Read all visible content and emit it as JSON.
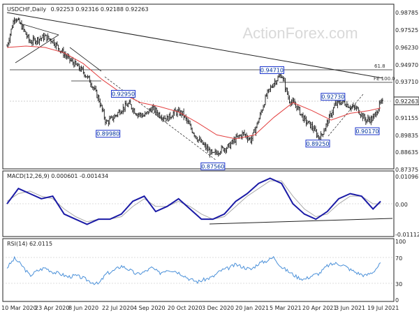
{
  "chart_data": [
    {
      "type": "candlestick",
      "title": "USDCHF,Daily",
      "ohlc_header": "0.92253 0.92316 0.92188 0.92263",
      "watermark": "ActionForex.com",
      "ylim": [
        0.8737,
        0.992
      ],
      "y_ticks": [
        "0.98785",
        "0.97525",
        "0.96230",
        "0.94970",
        "0.93710",
        "0.92263",
        "0.91155",
        "0.89835",
        "0.88635",
        "0.87375"
      ],
      "x_ticks": [
        "10 Mar 2020",
        "23 Apr 2020",
        "8 Jun 2020",
        "22 Jul 2020",
        "4 Sep 2020",
        "20 Oct 2020",
        "3 Dec 2020",
        "20 Jan 2021",
        "5 Mar 2021",
        "20 Apr 2021",
        "3 Jun 2021",
        "19 Jul 2021"
      ],
      "current_price": "0.92263",
      "labels": [
        {
          "text": "0.94710",
          "t": 0.695,
          "v": 0.9471
        },
        {
          "text": "0.92950",
          "t": 0.305,
          "v": 0.9295
        },
        {
          "text": "0.92730",
          "t": 0.855,
          "v": 0.9273
        },
        {
          "text": "0.89980",
          "t": 0.265,
          "v": 0.8998
        },
        {
          "text": "0.90170",
          "t": 0.945,
          "v": 0.9017
        },
        {
          "text": "0.89250",
          "t": 0.815,
          "v": 0.8925
        },
        {
          "text": "0.87560",
          "t": 0.54,
          "v": 0.8756
        }
      ],
      "levels": [
        {
          "text": "61.8",
          "v": 0.95
        },
        {
          "text": "FE 100.0",
          "v": 0.9375
        }
      ],
      "series": [
        {
          "type": "candlestick",
          "points": [
            [
              0.0,
              0.965
            ],
            [
              0.02,
              0.987
            ],
            [
              0.04,
              0.979
            ],
            [
              0.06,
              0.968
            ],
            [
              0.08,
              0.97
            ],
            [
              0.1,
              0.972
            ],
            [
              0.12,
              0.969
            ],
            [
              0.14,
              0.962
            ],
            [
              0.16,
              0.956
            ],
            [
              0.18,
              0.951
            ],
            [
              0.2,
              0.946
            ],
            [
              0.22,
              0.938
            ],
            [
              0.24,
              0.926
            ],
            [
              0.26,
              0.908
            ],
            [
              0.28,
              0.912
            ],
            [
              0.3,
              0.918
            ],
            [
              0.32,
              0.922
            ],
            [
              0.34,
              0.915
            ],
            [
              0.36,
              0.913
            ],
            [
              0.38,
              0.919
            ],
            [
              0.4,
              0.914
            ],
            [
              0.42,
              0.911
            ],
            [
              0.44,
              0.916
            ],
            [
              0.46,
              0.915
            ],
            [
              0.48,
              0.905
            ],
            [
              0.5,
              0.896
            ],
            [
              0.52,
              0.89
            ],
            [
              0.54,
              0.884
            ],
            [
              0.56,
              0.888
            ],
            [
              0.58,
              0.89
            ],
            [
              0.6,
              0.896
            ],
            [
              0.62,
              0.9
            ],
            [
              0.64,
              0.895
            ],
            [
              0.66,
              0.91
            ],
            [
              0.68,
              0.928
            ],
            [
              0.7,
              0.938
            ],
            [
              0.72,
              0.944
            ],
            [
              0.74,
              0.925
            ],
            [
              0.76,
              0.92
            ],
            [
              0.78,
              0.91
            ],
            [
              0.8,
              0.905
            ],
            [
              0.82,
              0.896
            ],
            [
              0.84,
              0.908
            ],
            [
              0.86,
              0.921
            ],
            [
              0.88,
              0.924
            ],
            [
              0.9,
              0.92
            ],
            [
              0.92,
              0.918
            ],
            [
              0.94,
              0.91
            ],
            [
              0.96,
              0.911
            ],
            [
              0.98,
              0.9226
            ]
          ]
        },
        {
          "type": "line",
          "color": "#e34040",
          "points": [
            [
              0.0,
              0.964
            ],
            [
              0.05,
              0.965
            ],
            [
              0.1,
              0.964
            ],
            [
              0.15,
              0.96
            ],
            [
              0.2,
              0.952
            ],
            [
              0.25,
              0.94
            ],
            [
              0.3,
              0.93
            ],
            [
              0.35,
              0.923
            ],
            [
              0.4,
              0.92
            ],
            [
              0.45,
              0.916
            ],
            [
              0.5,
              0.908
            ],
            [
              0.55,
              0.899
            ],
            [
              0.6,
              0.896
            ],
            [
              0.65,
              0.899
            ],
            [
              0.7,
              0.912
            ],
            [
              0.75,
              0.923
            ],
            [
              0.8,
              0.917
            ],
            [
              0.85,
              0.91
            ],
            [
              0.9,
              0.915
            ],
            [
              0.95,
              0.917
            ],
            [
              0.98,
              0.919
            ]
          ]
        }
      ]
    },
    {
      "type": "line",
      "title": "MACD(12,26,9) 0.000601 -0.001434",
      "ylim": [
        -0.0125,
        0.0115
      ],
      "y_ticks": [
        "0.010967",
        "0.00",
        "-0.011127"
      ],
      "series": [
        {
          "name": "MACD",
          "color": "#1a1aa6",
          "points": [
            [
              0.0,
              0.0
            ],
            [
              0.03,
              0.006
            ],
            [
              0.06,
              0.004
            ],
            [
              0.09,
              0.002
            ],
            [
              0.12,
              0.003
            ],
            [
              0.15,
              -0.004
            ],
            [
              0.18,
              -0.006
            ],
            [
              0.21,
              -0.008
            ],
            [
              0.24,
              -0.006
            ],
            [
              0.27,
              -0.006
            ],
            [
              0.3,
              -0.004
            ],
            [
              0.33,
              0.001
            ],
            [
              0.36,
              0.003
            ],
            [
              0.39,
              -0.003
            ],
            [
              0.42,
              -0.001
            ],
            [
              0.45,
              0.002
            ],
            [
              0.48,
              -0.002
            ],
            [
              0.51,
              -0.006
            ],
            [
              0.54,
              -0.006
            ],
            [
              0.57,
              -0.004
            ],
            [
              0.6,
              0.001
            ],
            [
              0.63,
              0.004
            ],
            [
              0.66,
              0.008
            ],
            [
              0.69,
              0.01
            ],
            [
              0.72,
              0.008
            ],
            [
              0.75,
              0.0
            ],
            [
              0.78,
              -0.004
            ],
            [
              0.81,
              -0.006
            ],
            [
              0.84,
              -0.003
            ],
            [
              0.87,
              0.002
            ],
            [
              0.9,
              0.004
            ],
            [
              0.93,
              0.003
            ],
            [
              0.96,
              -0.002
            ],
            [
              0.98,
              0.001
            ]
          ]
        },
        {
          "name": "Signal",
          "color": "#aaaaaa",
          "points": [
            [
              0.0,
              0.001
            ],
            [
              0.03,
              0.004
            ],
            [
              0.06,
              0.005
            ],
            [
              0.09,
              0.003
            ],
            [
              0.12,
              0.002
            ],
            [
              0.15,
              -0.002
            ],
            [
              0.18,
              -0.005
            ],
            [
              0.21,
              -0.007
            ],
            [
              0.24,
              -0.006
            ],
            [
              0.27,
              -0.006
            ],
            [
              0.3,
              -0.005
            ],
            [
              0.33,
              -0.001
            ],
            [
              0.36,
              0.002
            ],
            [
              0.39,
              -0.001
            ],
            [
              0.42,
              -0.001
            ],
            [
              0.45,
              0.001
            ],
            [
              0.48,
              -0.001
            ],
            [
              0.51,
              -0.004
            ],
            [
              0.54,
              -0.006
            ],
            [
              0.57,
              -0.005
            ],
            [
              0.6,
              -0.001
            ],
            [
              0.63,
              0.003
            ],
            [
              0.66,
              0.006
            ],
            [
              0.69,
              0.009
            ],
            [
              0.72,
              0.009
            ],
            [
              0.75,
              0.003
            ],
            [
              0.78,
              -0.002
            ],
            [
              0.81,
              -0.005
            ],
            [
              0.84,
              -0.004
            ],
            [
              0.87,
              0.0
            ],
            [
              0.9,
              0.003
            ],
            [
              0.93,
              0.003
            ],
            [
              0.96,
              0.0
            ],
            [
              0.98,
              0.0
            ]
          ]
        }
      ]
    },
    {
      "type": "line",
      "title": "RSI(14) 62.0115",
      "ylim": [
        0,
        100
      ],
      "y_ticks": [
        "100",
        "70",
        "30",
        "0"
      ],
      "series": [
        {
          "name": "RSI",
          "color": "#4a90d9",
          "points": [
            [
              0.0,
              55
            ],
            [
              0.02,
              70
            ],
            [
              0.04,
              58
            ],
            [
              0.06,
              42
            ],
            [
              0.08,
              50
            ],
            [
              0.1,
              55
            ],
            [
              0.12,
              48
            ],
            [
              0.14,
              45
            ],
            [
              0.16,
              40
            ],
            [
              0.18,
              42
            ],
            [
              0.2,
              38
            ],
            [
              0.22,
              32
            ],
            [
              0.24,
              28
            ],
            [
              0.26,
              45
            ],
            [
              0.28,
              50
            ],
            [
              0.3,
              58
            ],
            [
              0.32,
              52
            ],
            [
              0.34,
              44
            ],
            [
              0.36,
              48
            ],
            [
              0.38,
              55
            ],
            [
              0.4,
              46
            ],
            [
              0.42,
              52
            ],
            [
              0.44,
              50
            ],
            [
              0.46,
              44
            ],
            [
              0.48,
              36
            ],
            [
              0.5,
              32
            ],
            [
              0.52,
              36
            ],
            [
              0.54,
              40
            ],
            [
              0.56,
              50
            ],
            [
              0.58,
              54
            ],
            [
              0.6,
              60
            ],
            [
              0.62,
              56
            ],
            [
              0.64,
              52
            ],
            [
              0.66,
              62
            ],
            [
              0.68,
              66
            ],
            [
              0.7,
              72
            ],
            [
              0.72,
              56
            ],
            [
              0.74,
              48
            ],
            [
              0.76,
              40
            ],
            [
              0.78,
              36
            ],
            [
              0.8,
              42
            ],
            [
              0.82,
              46
            ],
            [
              0.84,
              58
            ],
            [
              0.86,
              62
            ],
            [
              0.88,
              60
            ],
            [
              0.9,
              52
            ],
            [
              0.92,
              46
            ],
            [
              0.94,
              42
            ],
            [
              0.96,
              48
            ],
            [
              0.98,
              62
            ]
          ]
        }
      ]
    }
  ]
}
